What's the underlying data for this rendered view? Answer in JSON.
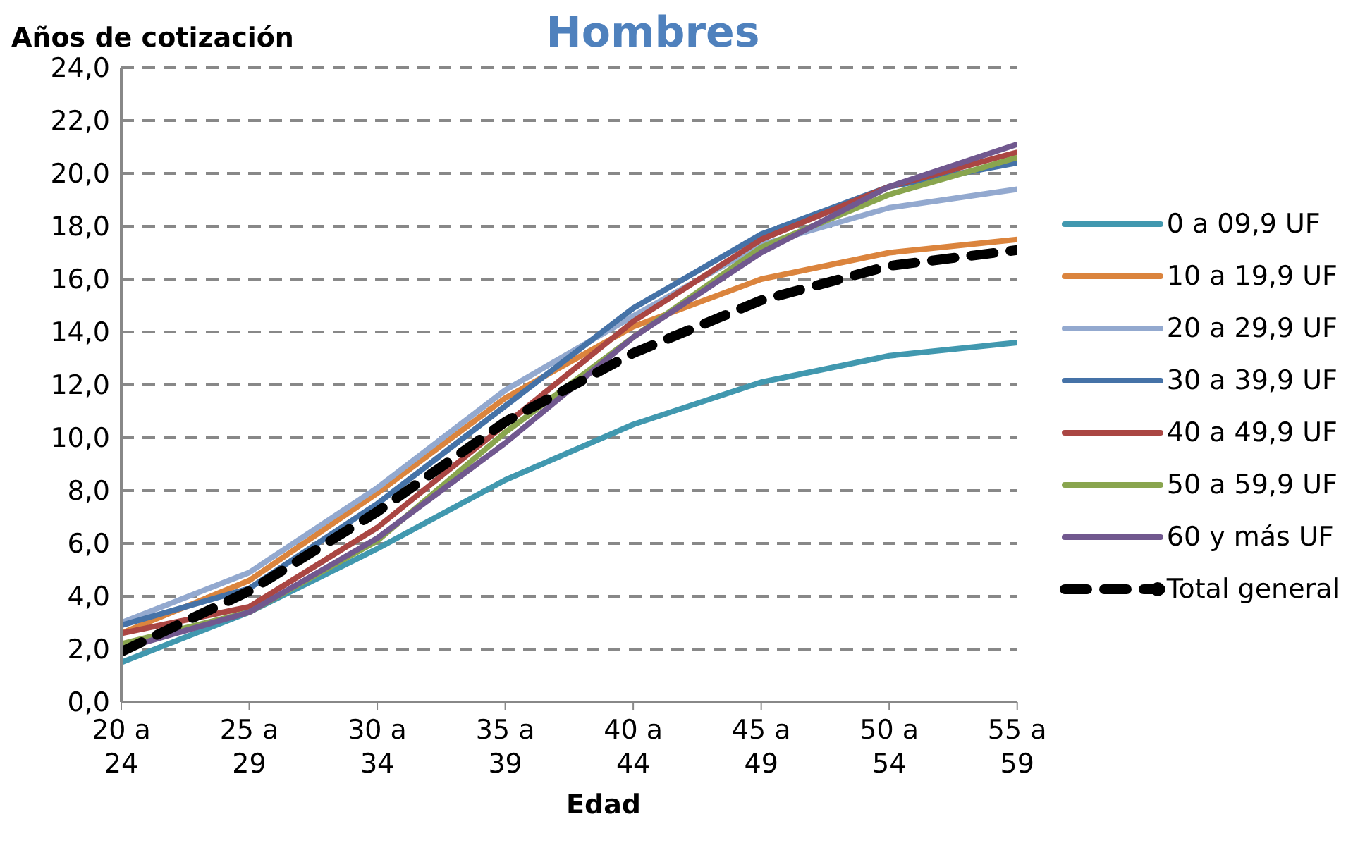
{
  "chart_data": {
    "type": "line",
    "title": "Hombres",
    "xlabel": "Edad",
    "ylabel": "Años de cotización",
    "categories": [
      "20 a 24",
      "25 a 29",
      "30 a 34",
      "35 a 39",
      "40 a 44",
      "45 a 49",
      "50 a 54",
      "55 a 59"
    ],
    "series": [
      {
        "name": "0 a 09,9 UF",
        "color": "#4198af",
        "values": [
          1.5,
          3.4,
          5.8,
          8.4,
          10.5,
          12.1,
          13.1,
          13.6
        ]
      },
      {
        "name": "10 a 19,9 UF",
        "color": "#db843d",
        "values": [
          2.6,
          4.6,
          7.9,
          11.5,
          14.2,
          16.0,
          17.0,
          17.5
        ]
      },
      {
        "name": "20 a 29,9 UF",
        "color": "#93a9cf",
        "values": [
          3.0,
          4.9,
          8.1,
          11.8,
          14.6,
          17.3,
          18.7,
          19.4
        ]
      },
      {
        "name": "30 a 39,9 UF",
        "color": "#4572a7",
        "values": [
          2.9,
          4.3,
          7.5,
          11.2,
          14.9,
          17.7,
          19.5,
          20.4
        ]
      },
      {
        "name": "40 a 49,9 UF",
        "color": "#aa4643",
        "values": [
          2.6,
          3.6,
          6.6,
          10.5,
          14.4,
          17.5,
          19.5,
          20.8
        ]
      },
      {
        "name": "50 a 59,9 UF",
        "color": "#89a54e",
        "values": [
          2.2,
          3.4,
          6.1,
          10.2,
          13.8,
          17.2,
          19.2,
          20.6
        ]
      },
      {
        "name": "60 y más UF",
        "color": "#71588f",
        "values": [
          2.0,
          3.4,
          6.2,
          9.8,
          13.8,
          17.0,
          19.5,
          21.1
        ]
      },
      {
        "name": "Total general",
        "color": "#000000",
        "line_style": "dashed",
        "values": [
          1.9,
          4.2,
          7.2,
          10.6,
          13.2,
          15.2,
          16.5,
          17.1
        ]
      }
    ],
    "ylim": [
      0,
      24
    ],
    "yticks": [
      {
        "value": 0,
        "label": "0,0"
      },
      {
        "value": 2,
        "label": "2,0"
      },
      {
        "value": 4,
        "label": "4,0"
      },
      {
        "value": 6,
        "label": "6,0"
      },
      {
        "value": 8,
        "label": "8,0"
      },
      {
        "value": 10,
        "label": "10,0"
      },
      {
        "value": 12,
        "label": "12,0"
      },
      {
        "value": 14,
        "label": "14,0"
      },
      {
        "value": 16,
        "label": "16,0"
      },
      {
        "value": 18,
        "label": "18,0"
      },
      {
        "value": 20,
        "label": "20,0"
      },
      {
        "value": 22,
        "label": "22,0"
      },
      {
        "value": 24,
        "label": "24,0"
      }
    ],
    "grid": "y",
    "legend": "right",
    "marker": "none"
  }
}
